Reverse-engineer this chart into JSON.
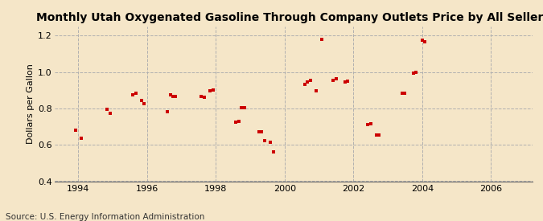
{
  "title": "Monthly Utah Oxygenated Gasoline Through Company Outlets Price by All Sellers",
  "ylabel": "Dollars per Gallon",
  "source": "Source: U.S. Energy Information Administration",
  "background_color": "#f5e6c8",
  "marker_color": "#cc0000",
  "marker": "s",
  "marker_size": 3.5,
  "xlim": [
    1993.3,
    2007.2
  ],
  "ylim": [
    0.4,
    1.25
  ],
  "yticks": [
    0.4,
    0.6,
    0.8,
    1.0,
    1.2
  ],
  "xticks": [
    1994,
    1996,
    1998,
    2000,
    2002,
    2004,
    2006
  ],
  "data_x": [
    1993.92,
    1994.08,
    1994.83,
    1994.92,
    1995.58,
    1995.67,
    1995.83,
    1995.92,
    1996.58,
    1996.67,
    1996.75,
    1996.83,
    1997.58,
    1997.67,
    1997.83,
    1997.92,
    1998.58,
    1998.67,
    1998.75,
    1998.83,
    1999.25,
    1999.33,
    1999.42,
    1999.58,
    1999.67,
    2000.58,
    2000.67,
    2000.75,
    2000.92,
    2001.08,
    2001.42,
    2001.5,
    2001.75,
    2001.83,
    2002.42,
    2002.5,
    2002.67,
    2002.75,
    2003.42,
    2003.5,
    2003.75,
    2003.83,
    2004.0,
    2004.08
  ],
  "data_y": [
    0.68,
    0.635,
    0.795,
    0.775,
    0.875,
    0.885,
    0.845,
    0.825,
    0.78,
    0.875,
    0.865,
    0.865,
    0.865,
    0.86,
    0.895,
    0.9,
    0.725,
    0.73,
    0.805,
    0.805,
    0.67,
    0.67,
    0.625,
    0.615,
    0.56,
    0.93,
    0.945,
    0.955,
    0.895,
    1.18,
    0.955,
    0.965,
    0.945,
    0.95,
    0.71,
    0.715,
    0.655,
    0.655,
    0.885,
    0.885,
    0.995,
    1.0,
    1.175,
    1.165
  ],
  "title_fontsize": 10,
  "tick_fontsize": 8,
  "source_fontsize": 7.5
}
